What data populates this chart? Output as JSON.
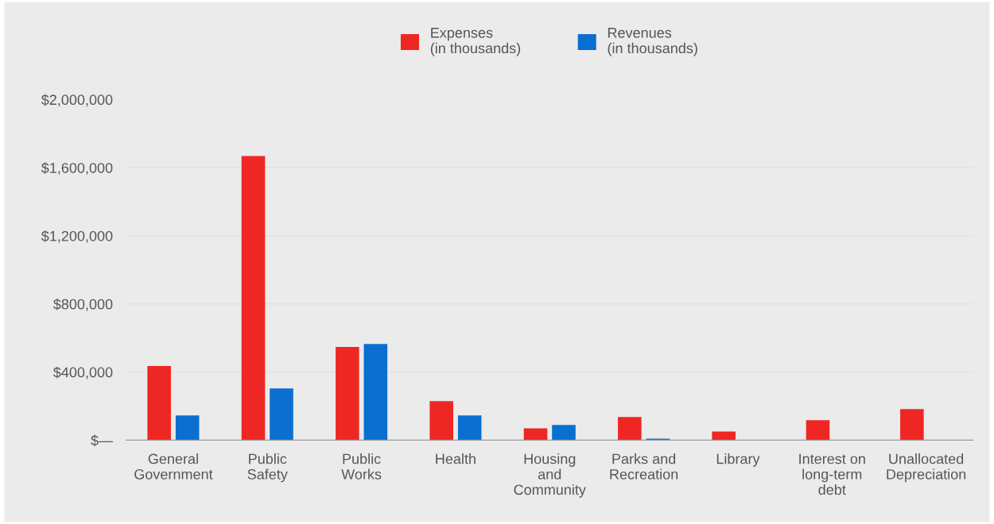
{
  "chart_data": {
    "type": "bar",
    "categories": [
      "General\nGovernment",
      "Public\nSafety",
      "Public\nWorks",
      "Health",
      "Housing\nand\nCommunity",
      "Parks and\nRecreation",
      "Library",
      "Interest on\nlong-term\ndebt",
      "Unallocated\nDepreciation"
    ],
    "series": [
      {
        "name": "Expenses\n(in thousands)",
        "color": "#ee2724",
        "values": [
          435000,
          1668000,
          547000,
          229000,
          70000,
          136000,
          51000,
          117000,
          182000
        ]
      },
      {
        "name": "Revenues\n(in thousands)",
        "color": "#0a6fd0",
        "values": [
          145000,
          304000,
          565000,
          145000,
          89000,
          9000,
          0,
          0,
          0
        ]
      }
    ],
    "ylim": [
      0,
      2000000
    ],
    "yticks": [
      {
        "value": 0,
        "label": "$—"
      },
      {
        "value": 400000,
        "label": "$400,000"
      },
      {
        "value": 800000,
        "label": "$800,000"
      },
      {
        "value": 1200000,
        "label": "$1,200,000"
      },
      {
        "value": 1600000,
        "label": "$1,600,000"
      },
      {
        "value": 2000000,
        "label": "$2,000,000"
      }
    ],
    "grid": "y",
    "legend": "top"
  }
}
